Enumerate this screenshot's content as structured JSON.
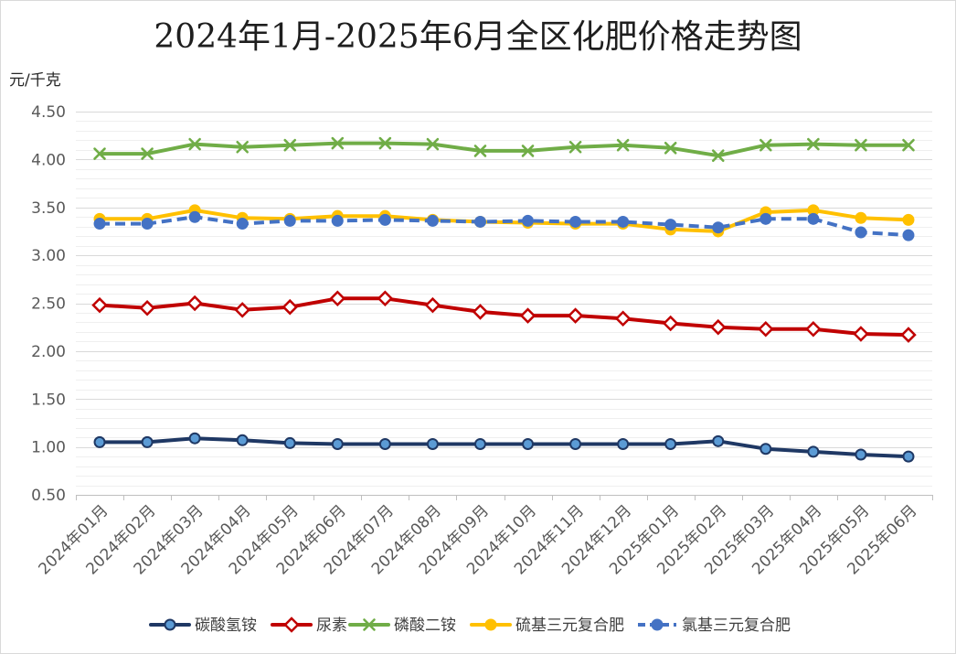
{
  "chart_data": {
    "type": "line",
    "title": "2024年1月-2025年6月全区化肥价格走势图",
    "ylabel": "元/千克",
    "ylim": [
      0.5,
      4.5
    ],
    "yticks": [
      "0.50",
      "1.00",
      "1.50",
      "2.00",
      "2.50",
      "3.00",
      "3.50",
      "4.00",
      "4.50"
    ],
    "minor_grid_step": 0.1,
    "grid": true,
    "legend": "bottom",
    "categories": [
      "2024年01月",
      "2024年02月",
      "2024年03月",
      "2024年04月",
      "2024年05月",
      "2024年06月",
      "2024年07月",
      "2024年08月",
      "2024年09月",
      "2024年10月",
      "2024年11月",
      "2024年12月",
      "2025年01月",
      "2025年02月",
      "2025年03月",
      "2025年04月",
      "2025年05月",
      "2025年06月"
    ],
    "series": [
      {
        "name": "碳酸氢铵",
        "color": "#1f3864",
        "marker": "circle",
        "marker_fill": "#5b9bd5",
        "dashed": false,
        "values": [
          1.05,
          1.05,
          1.09,
          1.07,
          1.04,
          1.03,
          1.03,
          1.03,
          1.03,
          1.03,
          1.03,
          1.03,
          1.03,
          1.06,
          0.98,
          0.95,
          0.92,
          0.9
        ]
      },
      {
        "name": "尿素",
        "color": "#c00000",
        "marker": "diamond",
        "marker_fill": "#ffffff",
        "dashed": false,
        "values": [
          2.48,
          2.45,
          2.5,
          2.43,
          2.46,
          2.55,
          2.55,
          2.48,
          2.41,
          2.37,
          2.37,
          2.34,
          2.29,
          2.25,
          2.23,
          2.23,
          2.18,
          2.17
        ]
      },
      {
        "name": "磷酸二铵",
        "color": "#70ad47",
        "marker": "x",
        "marker_fill": "none",
        "dashed": false,
        "values": [
          4.06,
          4.06,
          4.16,
          4.13,
          4.15,
          4.17,
          4.17,
          4.16,
          4.09,
          4.09,
          4.13,
          4.15,
          4.12,
          4.04,
          4.15,
          4.16,
          4.15,
          4.15
        ]
      },
      {
        "name": "硫基三元复合肥",
        "color": "#ffc000",
        "marker": "circle",
        "marker_fill": "#ffc000",
        "dashed": false,
        "values": [
          3.38,
          3.38,
          3.47,
          3.39,
          3.38,
          3.41,
          3.41,
          3.37,
          3.35,
          3.34,
          3.33,
          3.33,
          3.27,
          3.25,
          3.45,
          3.47,
          3.39,
          3.37
        ]
      },
      {
        "name": "氯基三元复合肥",
        "color": "#4472c4",
        "marker": "circle",
        "marker_fill": "#4472c4",
        "dashed": true,
        "values": [
          3.33,
          3.33,
          3.4,
          3.33,
          3.36,
          3.36,
          3.37,
          3.36,
          3.35,
          3.36,
          3.35,
          3.35,
          3.32,
          3.29,
          3.38,
          3.38,
          3.24,
          3.21
        ]
      }
    ]
  }
}
